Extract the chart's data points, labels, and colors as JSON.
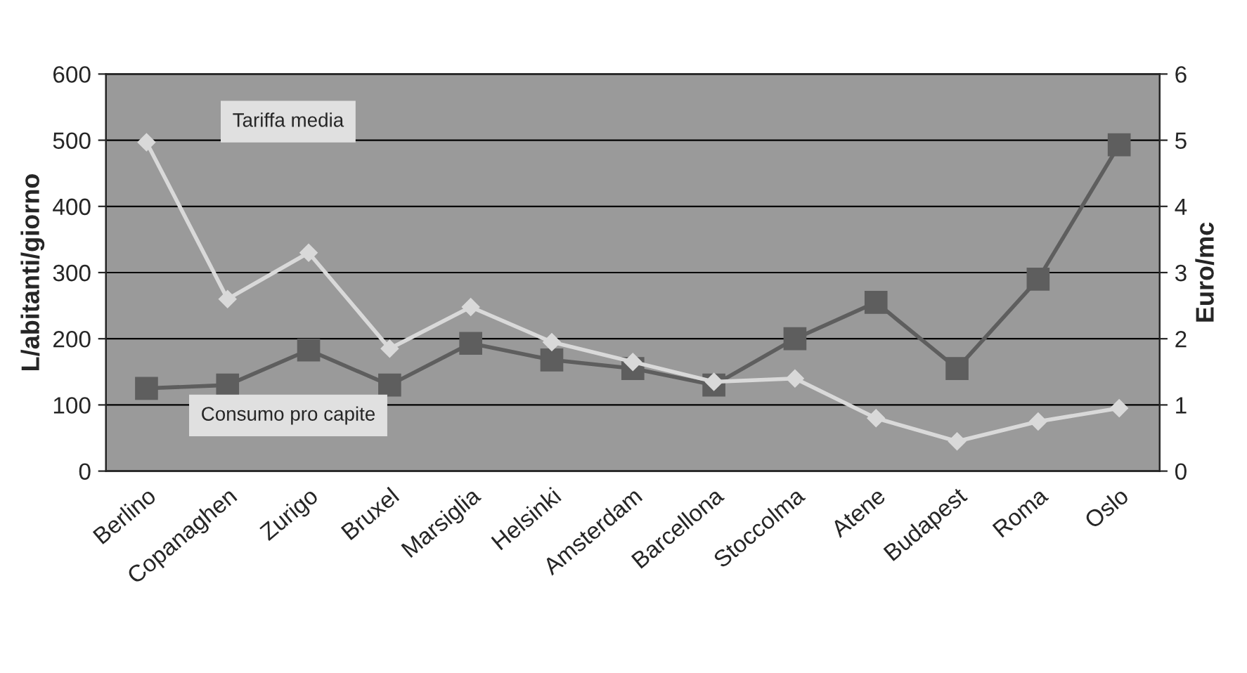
{
  "chart_data": {
    "type": "line",
    "categories": [
      "Berlino",
      "Copanaghen",
      "Zurigo",
      "Bruxel",
      "Marsiglia",
      "Helsinki",
      "Amsterdam",
      "Barcellona",
      "Stoccolma",
      "Atene",
      "Budapest",
      "Roma",
      "Oslo"
    ],
    "series": [
      {
        "color": "#5e5e5e",
        "marker": "square",
        "values": [
          125,
          130,
          183,
          130,
          193,
          168,
          155,
          130,
          200,
          255,
          155,
          290,
          493
        ]
      },
      {
        "color": "#d9d9d9",
        "marker": "diamond",
        "axis": "y2",
        "values": [
          4.97,
          2.6,
          3.3,
          1.85,
          2.48,
          1.95,
          1.65,
          1.35,
          1.4,
          0.8,
          0.45,
          0.75,
          0.95
        ]
      }
    ],
    "ylabel": "L/abitanti/giorno",
    "y2label": "Euro/mc",
    "ylim": [
      0,
      600
    ],
    "yticks": [
      0,
      100,
      200,
      300,
      400,
      500,
      600
    ],
    "y2lim": [
      0,
      6
    ],
    "y2ticks": [
      0,
      1,
      2,
      3,
      4,
      5,
      6
    ],
    "grid": "y",
    "annotations": [
      "Tariffa media",
      "Consumo pro capite"
    ]
  }
}
